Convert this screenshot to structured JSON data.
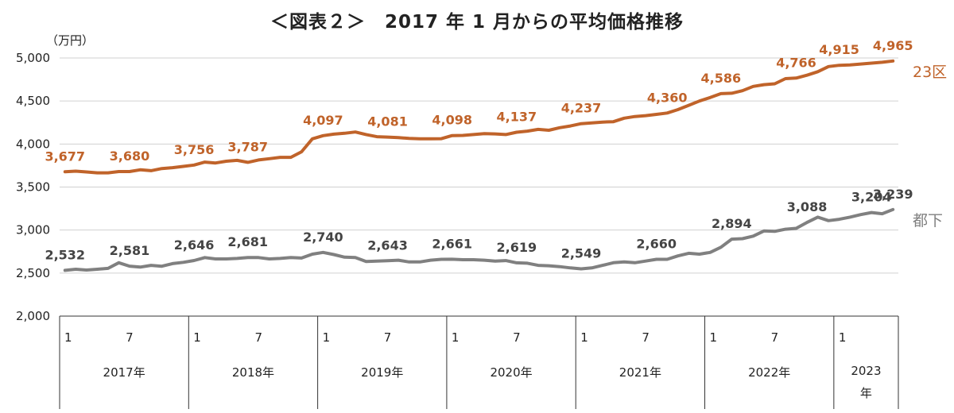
{
  "chart_data": {
    "type": "line",
    "title": "＜図表２＞　2017 年 1 月からの平均価格推移",
    "y_unit": "（万円）",
    "ylim": [
      2000,
      5000
    ],
    "y_ticks": [
      "2,000",
      "2,500",
      "3,000",
      "3,500",
      "4,000",
      "4,500",
      "5,000"
    ],
    "grid": "horizontal",
    "month_ticks": [
      "1",
      "7",
      "1",
      "7",
      "1",
      "7",
      "1",
      "7",
      "1",
      "7",
      "1",
      "7",
      "1"
    ],
    "month_tick_index": [
      0,
      6,
      12,
      18,
      24,
      30,
      36,
      42,
      48,
      54,
      60,
      66,
      72
    ],
    "year_labels": [
      "2017年",
      "2018年",
      "2019年",
      "2020年",
      "2021年",
      "2022年",
      "2023年"
    ],
    "colors": {
      "23ku": "#c0632a",
      "tokai": "#808080"
    },
    "series": [
      {
        "name": "23区",
        "values": [
          3677,
          3685,
          3675,
          3665,
          3665,
          3680,
          3680,
          3700,
          3690,
          3715,
          3725,
          3740,
          3756,
          3790,
          3780,
          3800,
          3810,
          3787,
          3815,
          3830,
          3845,
          3845,
          3910,
          4060,
          4097,
          4115,
          4125,
          4140,
          4110,
          4085,
          4081,
          4075,
          4065,
          4060,
          4060,
          4062,
          4098,
          4100,
          4110,
          4120,
          4118,
          4110,
          4137,
          4150,
          4170,
          4160,
          4190,
          4210,
          4237,
          4245,
          4255,
          4260,
          4300,
          4320,
          4330,
          4345,
          4360,
          4400,
          4450,
          4500,
          4540,
          4586,
          4590,
          4620,
          4670,
          4690,
          4700,
          4760,
          4766,
          4800,
          4840,
          4900,
          4915,
          4920,
          4930,
          4940,
          4950,
          4965
        ]
      },
      {
        "name": "都下",
        "values": [
          2532,
          2545,
          2535,
          2545,
          2555,
          2620,
          2581,
          2570,
          2590,
          2580,
          2610,
          2625,
          2646,
          2680,
          2665,
          2665,
          2670,
          2681,
          2680,
          2665,
          2670,
          2680,
          2675,
          2720,
          2740,
          2715,
          2685,
          2680,
          2635,
          2640,
          2643,
          2650,
          2630,
          2630,
          2650,
          2660,
          2661,
          2655,
          2655,
          2650,
          2640,
          2645,
          2619,
          2615,
          2590,
          2585,
          2575,
          2560,
          2549,
          2560,
          2590,
          2620,
          2630,
          2620,
          2640,
          2660,
          2660,
          2700,
          2730,
          2720,
          2740,
          2800,
          2894,
          2900,
          2930,
          2990,
          2985,
          3010,
          3020,
          3088,
          3150,
          3110,
          3125,
          3150,
          3180,
          3204,
          3190,
          3239
        ]
      }
    ],
    "data_labels": [
      {
        "series": 0,
        "index": 0,
        "text": "3,677"
      },
      {
        "series": 0,
        "index": 6,
        "text": "3,680"
      },
      {
        "series": 0,
        "index": 12,
        "text": "3,756"
      },
      {
        "series": 0,
        "index": 17,
        "text": "3,787"
      },
      {
        "series": 0,
        "index": 24,
        "text": "4,097"
      },
      {
        "series": 0,
        "index": 30,
        "text": "4,081"
      },
      {
        "series": 0,
        "index": 36,
        "text": "4,098"
      },
      {
        "series": 0,
        "index": 42,
        "text": "4,137"
      },
      {
        "series": 0,
        "index": 48,
        "text": "4,237"
      },
      {
        "series": 0,
        "index": 56,
        "text": "4,360"
      },
      {
        "series": 0,
        "index": 61,
        "text": "4,586"
      },
      {
        "series": 0,
        "index": 68,
        "text": "4,766"
      },
      {
        "series": 0,
        "index": 72,
        "text": "4,915"
      },
      {
        "series": 0,
        "index": 77,
        "text": "4,965"
      },
      {
        "series": 1,
        "index": 0,
        "text": "2,532"
      },
      {
        "series": 1,
        "index": 6,
        "text": "2,581"
      },
      {
        "series": 1,
        "index": 12,
        "text": "2,646"
      },
      {
        "series": 1,
        "index": 17,
        "text": "2,681"
      },
      {
        "series": 1,
        "index": 24,
        "text": "2,740"
      },
      {
        "series": 1,
        "index": 30,
        "text": "2,643"
      },
      {
        "series": 1,
        "index": 36,
        "text": "2,661"
      },
      {
        "series": 1,
        "index": 42,
        "text": "2,619"
      },
      {
        "series": 1,
        "index": 48,
        "text": "2,549"
      },
      {
        "series": 1,
        "index": 55,
        "text": "2,660"
      },
      {
        "series": 1,
        "index": 62,
        "text": "2,894"
      },
      {
        "series": 1,
        "index": 69,
        "text": "3,088"
      },
      {
        "series": 1,
        "index": 75,
        "text": "3,204"
      },
      {
        "series": 1,
        "index": 77,
        "text": "3,239"
      }
    ]
  }
}
